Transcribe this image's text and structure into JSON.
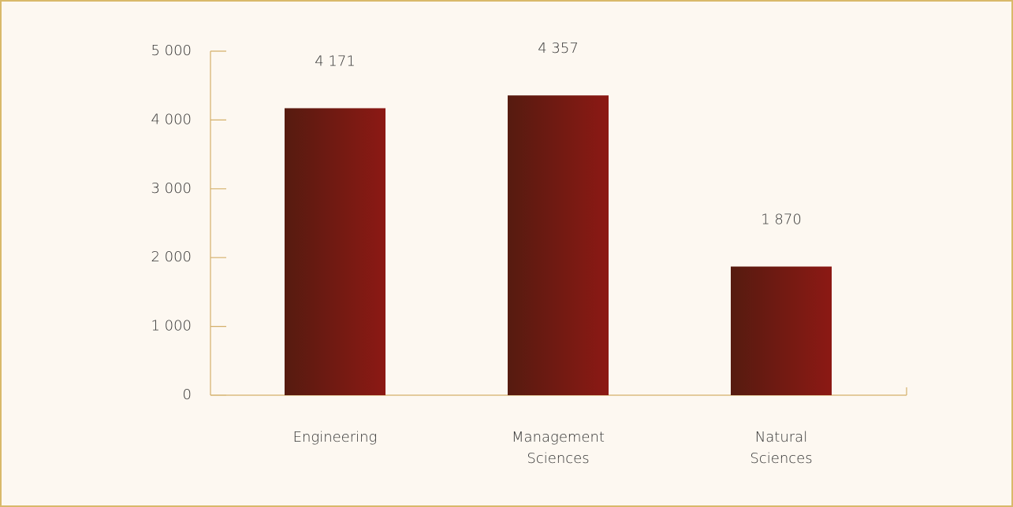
{
  "chart_data": {
    "type": "bar",
    "categories": [
      "Engineering",
      "Management Sciences",
      "Natural Sciences"
    ],
    "values": [
      4171,
      4357,
      1870
    ],
    "value_labels": [
      "4 171",
      "4 357",
      "1 870"
    ],
    "colors": [
      "#561b10",
      "#8c1914"
    ],
    "ylim": [
      0,
      5000
    ],
    "yticks": [
      {
        "value": 0,
        "label": "0"
      },
      {
        "value": 1000,
        "label": "1 000"
      },
      {
        "value": 2000,
        "label": "2 000"
      },
      {
        "value": 3000,
        "label": "3 000"
      },
      {
        "value": 4000,
        "label": "4 000"
      },
      {
        "value": 5000,
        "label": "5 000"
      }
    ],
    "grid": false
  }
}
